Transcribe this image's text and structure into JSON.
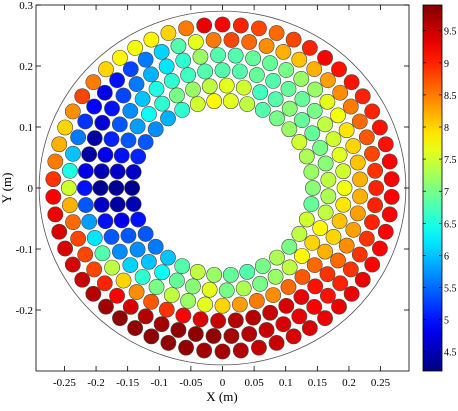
{
  "chart_data": {
    "type": "scatter",
    "title": "",
    "xlabel": "X (m)",
    "ylabel": "Y (m)",
    "xlim": [
      -0.295,
      0.295
    ],
    "ylim": [
      -0.3,
      0.3
    ],
    "grid": false,
    "x_ticks": [
      -0.25,
      -0.2,
      -0.15,
      -0.1,
      -0.05,
      0,
      0.05,
      0.1,
      0.15,
      0.2,
      0.25
    ],
    "x_tick_labels": [
      "-0.25",
      "-0.2",
      "-0.15",
      "-0.1",
      "-0.05",
      "0",
      "0.05",
      "0.1",
      "0.15",
      "0.2",
      "0.25"
    ],
    "y_ticks": [
      -0.2,
      -0.1,
      0,
      0.1,
      0.2,
      0.3
    ],
    "y_tick_labels": [
      "-0.2",
      "-0.1",
      "0",
      "0.1",
      "0.2",
      "0.3"
    ],
    "boundary_radius": 0.29,
    "colorbar": {
      "min": 4.2,
      "max": 9.9,
      "ticks": [
        4.5,
        5,
        5.5,
        6,
        6.5,
        7,
        7.5,
        8,
        8.5,
        9,
        9.5
      ],
      "tick_labels": [
        "4.5",
        "5",
        "5.5",
        "6",
        "6.5",
        "7",
        "7.5",
        "8",
        "8.5",
        "9",
        "9.5"
      ],
      "colormap": "jet"
    },
    "rings": [
      {
        "radius": 0.143,
        "n": 34,
        "phase_deg": 0,
        "values": [
          7.1,
          7.2,
          7.3,
          7.5,
          7.2,
          7.0,
          6.8,
          7.4,
          7.6,
          7.8,
          7.5,
          6.6,
          5.9,
          5.7,
          5.4,
          5.1,
          4.6,
          4.3,
          4.5,
          5.0,
          5.4,
          5.6,
          6.0,
          6.8,
          7.4,
          7.2,
          6.9,
          6.8,
          7.0,
          7.3,
          7.0,
          7.4,
          7.5,
          6.9
        ]
      },
      {
        "radius": 0.168,
        "n": 39,
        "phase_deg": 4.6,
        "values": [
          7.4,
          7.1,
          7.0,
          6.9,
          6.9,
          7.1,
          6.8,
          6.7,
          7.5,
          7.6,
          7.4,
          7.2,
          7.0,
          6.6,
          6.4,
          5.8,
          5.4,
          5.0,
          4.6,
          4.3,
          4.4,
          4.8,
          5.4,
          5.7,
          6.0,
          6.4,
          6.9,
          7.1,
          7.6,
          7.0,
          7.3,
          7.0,
          7.2,
          7.4,
          7.8,
          8.0,
          7.8,
          7.4,
          7.3
        ]
      },
      {
        "radius": 0.193,
        "n": 44,
        "phase_deg": 0,
        "values": [
          7.7,
          7.5,
          7.6,
          7.5,
          7.4,
          7.0,
          6.9,
          6.9,
          6.8,
          6.9,
          6.8,
          6.8,
          6.8,
          6.7,
          6.6,
          6.5,
          6.0,
          5.7,
          5.4,
          5.1,
          4.8,
          4.5,
          4.3,
          4.6,
          5.0,
          5.4,
          5.7,
          6.1,
          6.6,
          7.0,
          7.4,
          7.2,
          7.6,
          8.0,
          8.3,
          8.5,
          8.4,
          8.6,
          8.7,
          8.6,
          8.2,
          8.0,
          8.1,
          7.9
        ]
      },
      {
        "radius": 0.218,
        "n": 49,
        "phase_deg": 3.7,
        "values": [
          8.2,
          8.1,
          8.0,
          7.9,
          7.7,
          7.6,
          7.2,
          7.2,
          7.0,
          6.9,
          6.9,
          6.8,
          6.8,
          7.2,
          6.6,
          6.2,
          5.9,
          5.6,
          5.3,
          5.0,
          4.7,
          4.4,
          4.4,
          4.8,
          5.0,
          5.4,
          5.8,
          6.2,
          6.8,
          7.4,
          8.0,
          8.4,
          8.7,
          8.9,
          9.2,
          9.4,
          9.5,
          9.6,
          9.6,
          9.5,
          9.4,
          9.3,
          9.1,
          8.9,
          8.6,
          8.4,
          8.3,
          8.3,
          8.2
        ]
      },
      {
        "radius": 0.243,
        "n": 54,
        "phase_deg": 0,
        "values": [
          9.0,
          8.9,
          8.8,
          8.7,
          8.6,
          8.5,
          8.4,
          8.3,
          8.2,
          8.1,
          8.2,
          8.4,
          8.6,
          8.8,
          8.5,
          7.6,
          6.8,
          6.1,
          5.6,
          5.3,
          5.0,
          4.8,
          4.9,
          5.2,
          5.6,
          6.0,
          6.5,
          7.5,
          8.2,
          8.6,
          8.8,
          8.8,
          8.8,
          9.0,
          9.2,
          9.4,
          9.6,
          9.7,
          9.8,
          9.8,
          9.8,
          9.7,
          9.6,
          9.5,
          9.4,
          9.3,
          9.2,
          9.1,
          9.0,
          8.9,
          8.9,
          8.9,
          9.0,
          9.0
        ]
      },
      {
        "radius": 0.268,
        "n": 58,
        "phase_deg": 3.1,
        "values": [
          9.2,
          9.2,
          9.1,
          9.1,
          9.0,
          9.0,
          9.1,
          9.1,
          9.2,
          9.0,
          8.8,
          8.6,
          8.8,
          9.0,
          9.2,
          9.3,
          8.5,
          8.0,
          7.8,
          7.7,
          7.8,
          8.0,
          8.5,
          8.8,
          8.4,
          8.0,
          8.2,
          8.5,
          8.9,
          9.2,
          9.3,
          9.4,
          9.4,
          9.4,
          9.5,
          9.6,
          9.7,
          9.8,
          9.8,
          9.8,
          9.8,
          9.8,
          9.7,
          9.7,
          9.6,
          9.5,
          9.5,
          9.4,
          9.4,
          9.3,
          9.3,
          9.3,
          9.3,
          9.2,
          9.2,
          9.2,
          9.2,
          9.2
        ]
      }
    ]
  }
}
